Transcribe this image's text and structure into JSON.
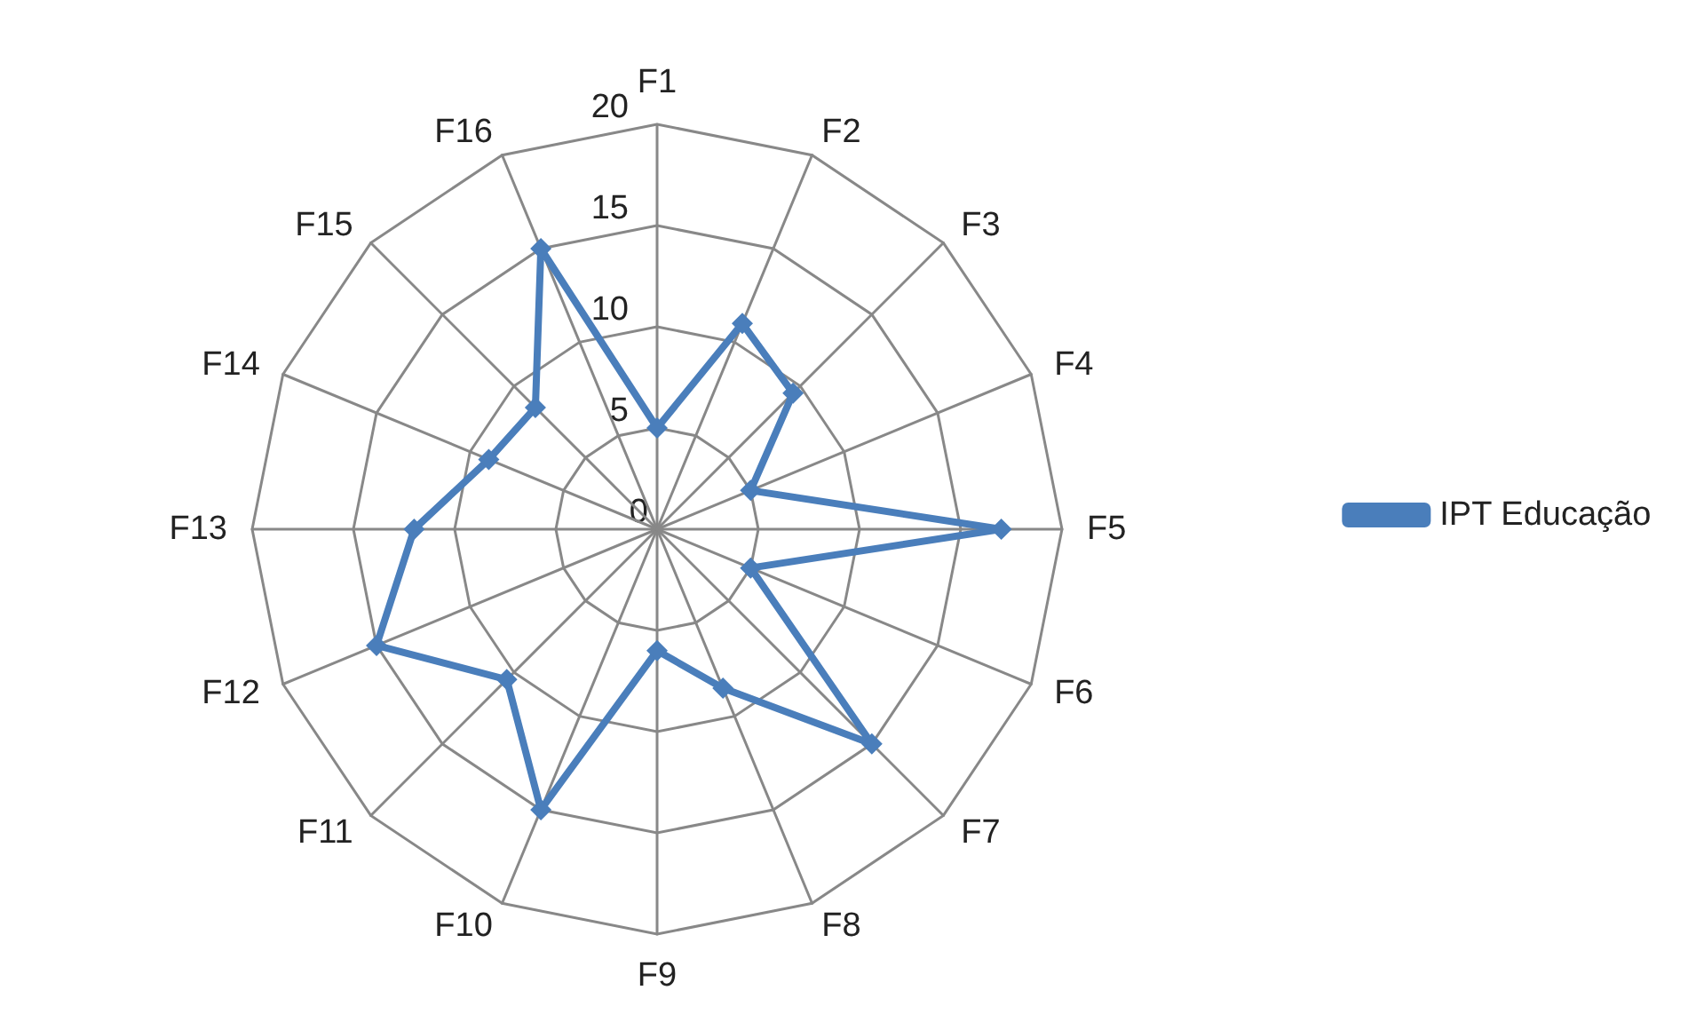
{
  "chart_data": {
    "type": "radar",
    "categories": [
      "F1",
      "F2",
      "F3",
      "F4",
      "F5",
      "F6",
      "F7",
      "F8",
      "F9",
      "F10",
      "F11",
      "F12",
      "F13",
      "F14",
      "F15",
      "F16"
    ],
    "series": [
      {
        "name": "IPT Educação",
        "color": "#4a7ebb",
        "values": [
          5,
          11,
          9.5,
          5,
          17,
          5,
          15,
          8.5,
          6,
          15,
          10.5,
          15,
          12,
          9,
          8.5,
          15
        ]
      }
    ],
    "ylim": [
      0,
      20
    ],
    "yticks": [
      0,
      5,
      10,
      15,
      20
    ],
    "grid": true,
    "legend": "right",
    "marker": "diamond",
    "line_style": "solid"
  }
}
